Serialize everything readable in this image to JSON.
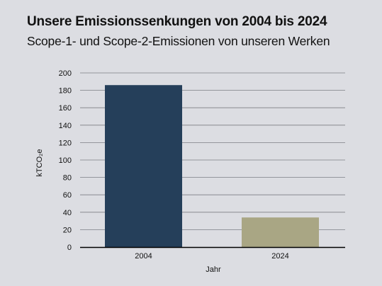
{
  "header": {
    "title": "Unsere Emissionssenkungen von 2004 bis 2024",
    "subtitle": "Scope-1- und Scope-2-Emissionen von unseren Werken"
  },
  "colors": {
    "background": "#dcdde2",
    "gridline": "#7d7e84",
    "axis": "#000000",
    "bar_2004": "#253f5a",
    "bar_2024": "#a9a684"
  },
  "chart_data": {
    "type": "bar",
    "title": "Unsere Emissionssenkungen von 2004 bis 2024",
    "subtitle": "Scope-1- und Scope-2-Emissionen von unseren Werken",
    "categories": [
      "2004",
      "2024"
    ],
    "values": [
      186,
      34
    ],
    "xlabel": "Jahr",
    "ylabel": "kTCO₂e",
    "ylim": [
      0,
      200
    ],
    "yticks": [
      0,
      20,
      40,
      60,
      80,
      100,
      120,
      140,
      160,
      180,
      200
    ],
    "grid": true,
    "legend": "none"
  }
}
